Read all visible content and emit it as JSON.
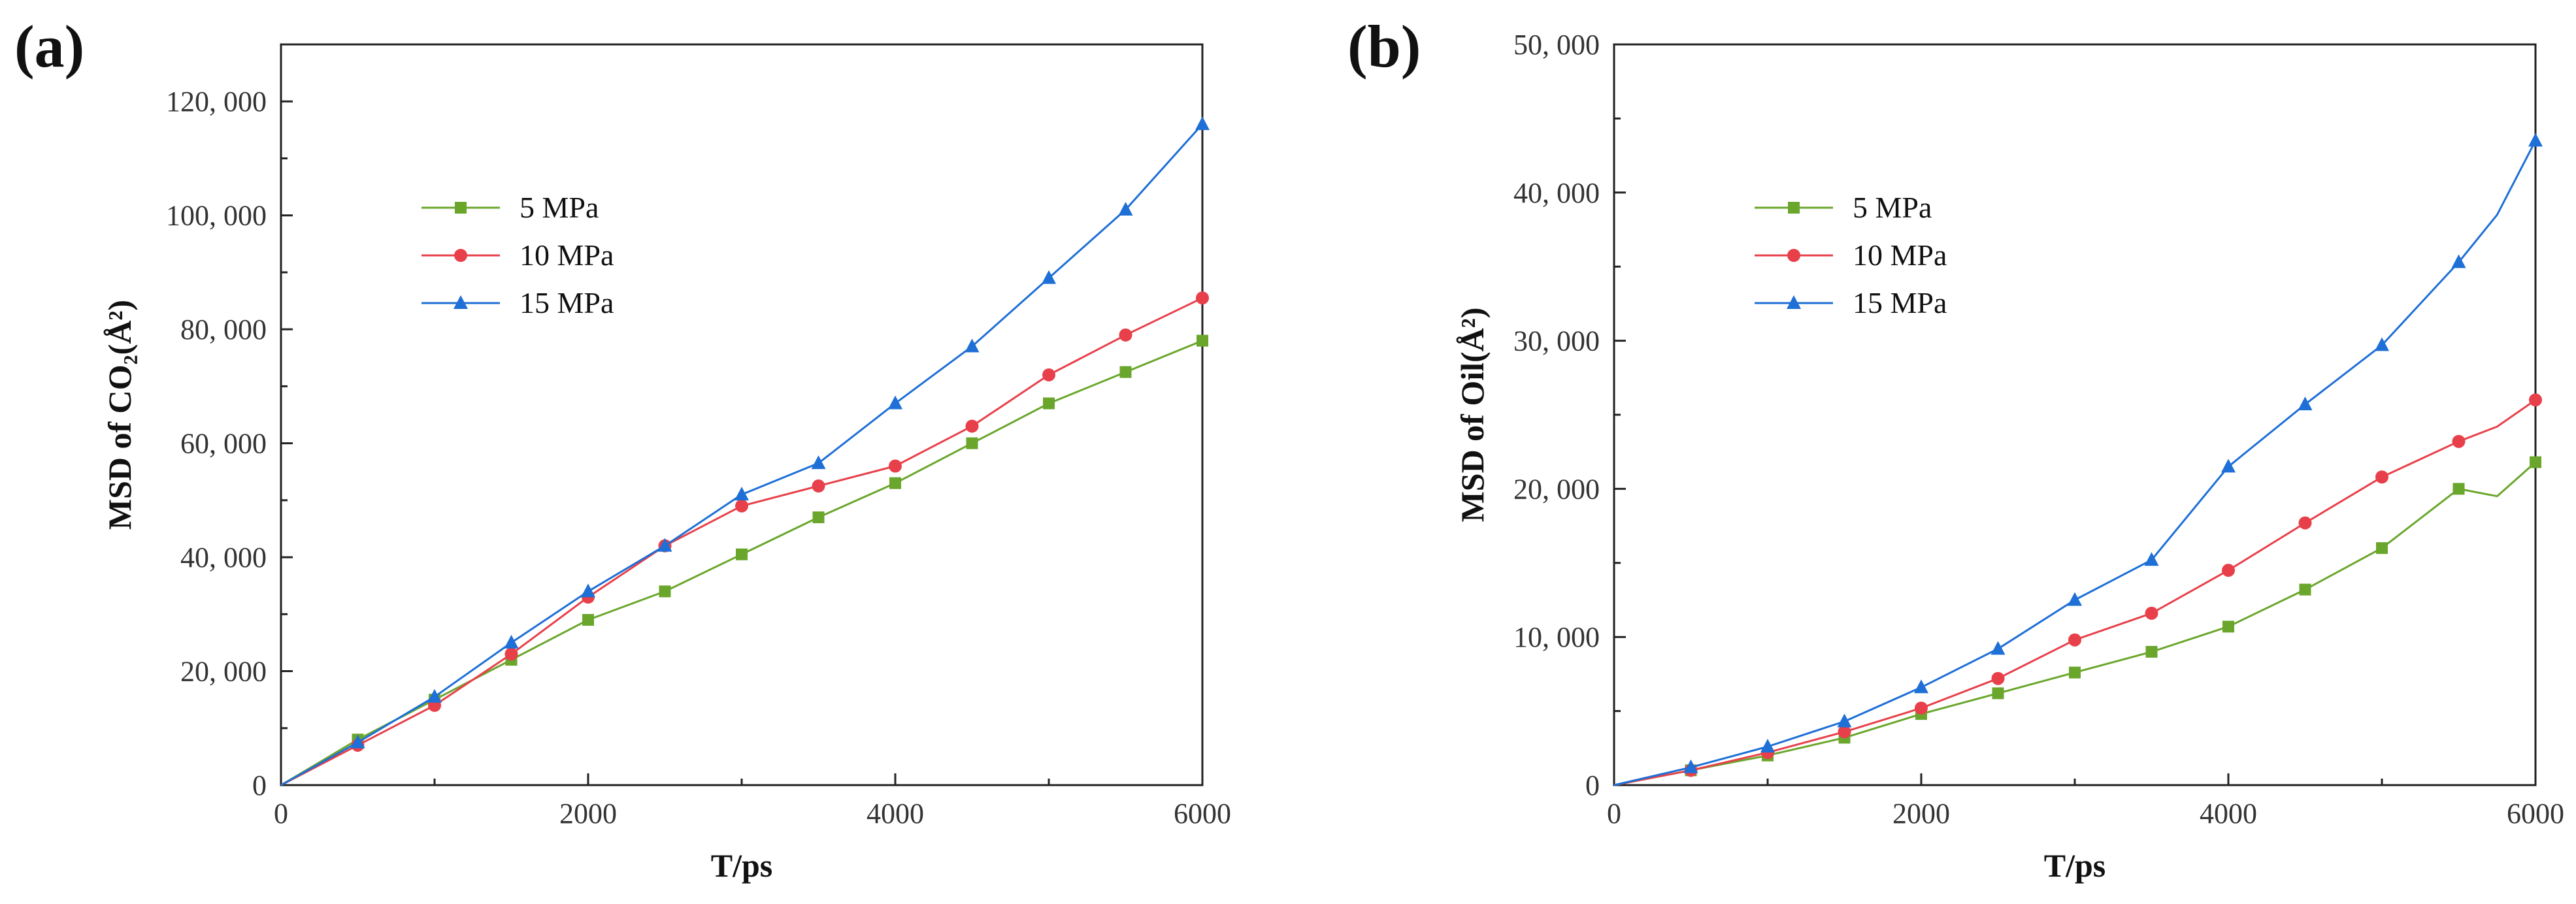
{
  "panels": [
    {
      "label": "(a)",
      "xlabel": "T/ps",
      "ylabel": "MSD of CO₂(Å²)"
    },
    {
      "label": "(b)",
      "xlabel": "T/ps",
      "ylabel": "MSD of Oil(Å²)"
    }
  ],
  "colors": {
    "5 MPa": "#6aa62c",
    "10 MPa": "#e8404a",
    "15 MPa": "#1e6fd6"
  },
  "chart_data": [
    {
      "type": "line",
      "title": "",
      "xlabel": "T/ps",
      "ylabel": "MSD of CO₂(Å²)",
      "xlim": [
        0,
        6000
      ],
      "ylim": [
        0,
        130000
      ],
      "xticks": [
        0,
        2000,
        4000,
        6000
      ],
      "xtick_labels": [
        "0",
        "2000",
        "4000",
        "6000"
      ],
      "yticks": [
        0,
        20000,
        40000,
        60000,
        80000,
        100000,
        120000
      ],
      "ytick_labels": [
        "0",
        "20, 000",
        "40, 000",
        "60, 000",
        "80, 000",
        "100, 000",
        "120, 000"
      ],
      "legend_position": "upper-left",
      "x": [
        0,
        500,
        1000,
        1500,
        2000,
        2500,
        3000,
        3500,
        4000,
        4500,
        5000,
        5500,
        6000
      ],
      "series": [
        {
          "name": "5 MPa",
          "marker": "square",
          "values": [
            0,
            8000,
            15000,
            22000,
            29000,
            34000,
            40500,
            47000,
            53000,
            60000,
            67000,
            72500,
            78000
          ]
        },
        {
          "name": "10 MPa",
          "marker": "circle",
          "values": [
            0,
            7000,
            14000,
            23000,
            33000,
            42000,
            49000,
            52500,
            56000,
            63000,
            72000,
            79000,
            85500
          ]
        },
        {
          "name": "15 MPa",
          "marker": "triangle",
          "values": [
            0,
            7500,
            15500,
            25000,
            34000,
            42000,
            51000,
            56500,
            67000,
            77000,
            89000,
            101000,
            116000
          ]
        }
      ]
    },
    {
      "type": "line",
      "title": "",
      "xlabel": "T/ps",
      "ylabel": "MSD of Oil(Å²)",
      "xlim": [
        0,
        6000
      ],
      "ylim": [
        0,
        50000
      ],
      "xticks": [
        0,
        2000,
        4000,
        6000
      ],
      "xtick_labels": [
        "0",
        "2000",
        "4000",
        "6000"
      ],
      "yticks": [
        0,
        10000,
        20000,
        30000,
        40000,
        50000
      ],
      "ytick_labels": [
        "0",
        "10, 000",
        "20, 000",
        "30, 000",
        "40, 000",
        "50, 000"
      ],
      "legend_position": "upper-left",
      "x": [
        0,
        500,
        1000,
        1500,
        2000,
        2500,
        3000,
        3500,
        4000,
        4500,
        5000,
        5500,
        5750,
        6000
      ],
      "series": [
        {
          "name": "5 MPa",
          "marker": "square",
          "values": [
            0,
            1000,
            2000,
            3200,
            4800,
            6200,
            7600,
            9000,
            10700,
            13200,
            16000,
            20000,
            19500,
            21800
          ]
        },
        {
          "name": "10 MPa",
          "marker": "circle",
          "values": [
            0,
            1000,
            2200,
            3600,
            5200,
            7200,
            9800,
            11600,
            14500,
            17700,
            20800,
            23200,
            24200,
            26000
          ]
        },
        {
          "name": "15 MPa",
          "marker": "triangle",
          "values": [
            0,
            1200,
            2600,
            4300,
            6600,
            9200,
            12500,
            15200,
            21500,
            25700,
            29700,
            35300,
            38500,
            43500
          ]
        }
      ]
    }
  ]
}
